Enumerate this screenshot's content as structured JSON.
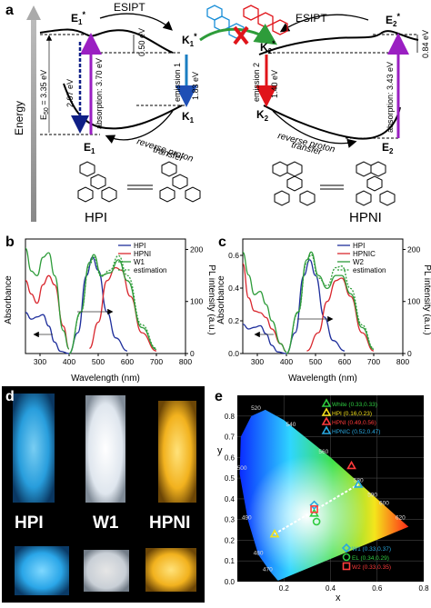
{
  "panel_a": {
    "letter": "a",
    "energy_axis": "Energy",
    "esipt_left": "ESIPT",
    "esipt_right": "ESIPT",
    "reverse_left": [
      "reverse proton",
      "transfer"
    ],
    "reverse_right": [
      "reverse proton",
      "transfer"
    ],
    "E1_star": "E",
    "E1_star_sub": "1",
    "E2_star": "E",
    "E2_star_sub": "2",
    "K1_star": "K",
    "K1_star_sub": "1",
    "K2_star": "K",
    "K2_star_sub": "2",
    "K1": "K",
    "K1_sub": "1",
    "K2": "K",
    "K2_sub": "2",
    "E1": "E",
    "E1_sub": "1",
    "E2": "E",
    "E2_sub": "2",
    "eg_label": "E",
    "eg_sub": "50",
    "eg_value": " = 3.35 eV",
    "v297": "2.97 eV",
    "v370": "absorption: 3.70 eV",
    "v050": "0.50 eV",
    "v183": "1.83 eV",
    "emission1": "emission 1",
    "emission2": "emission 2",
    "v140": "1.40 eV",
    "v343": "absorption: 3.43 eV",
    "v084": "0.84 eV",
    "mol_left": "HPI",
    "mol_right": "HPNI",
    "colors": {
      "violet": "#9a1fc2",
      "blue": "#1f4fb5",
      "darkblue": "#0f1f86",
      "red": "#e0141a",
      "green": "#2e9c3a",
      "cyan": "#1a7ec2"
    }
  },
  "panel_b": {
    "letter": "b",
    "ylabel": "Absorbance",
    "y2label": "PL intensity (a.u.)",
    "xlabel": "Wavelength (nm)",
    "legend": [
      "HPI",
      "HPNI",
      "W1",
      "estimation"
    ],
    "xticks": [
      "300",
      "400",
      "500",
      "600",
      "700",
      "800"
    ],
    "y2ticks": [
      "0",
      "100",
      "200"
    ]
  },
  "panel_c": {
    "letter": "c",
    "ylabel": "Absorbance",
    "y2label": "PL intensity (a.u.)",
    "xlabel": "Wavelength (nm)",
    "legend": [
      "HPI",
      "HPNIC",
      "W2",
      "estimation"
    ],
    "xticks": [
      "300",
      "400",
      "500",
      "600",
      "700",
      "800"
    ],
    "yticks": [
      "0.0",
      "0.2",
      "0.4",
      "0.6"
    ],
    "y2ticks": [
      "0",
      "100",
      "200"
    ]
  },
  "panel_d": {
    "letter": "d",
    "labels": [
      "HPI",
      "W1",
      "HPNI"
    ],
    "colors": {
      "hpi": "#38b8f0",
      "w1": "#e8edf3",
      "hpni": "#f2b21e"
    }
  },
  "panel_e": {
    "letter": "e",
    "ylabel": "y",
    "xlabel": "x",
    "xticks": [
      "0.2",
      "0.4",
      "0.6",
      "0.8"
    ],
    "yticks": [
      "0.0",
      "0.1",
      "0.2",
      "0.3",
      "0.4",
      "0.5",
      "0.6",
      "0.7",
      "0.8"
    ],
    "wavelength_marks": [
      "520",
      "540",
      "500",
      "560",
      "580",
      "590",
      "600",
      "620",
      "490",
      "480",
      "470"
    ],
    "legend_top": [
      {
        "text": "White (0.33,0.33)",
        "color": "#2ecc40"
      },
      {
        "text": "HPI (0.16,0.23)",
        "color": "#f5e21b"
      },
      {
        "text": "HPNI (0.49,0.56)",
        "color": "#ff3b3b"
      },
      {
        "text": "HPNIC (0.52,0.47)",
        "color": "#29a8e0"
      }
    ],
    "legend_bottom": [
      {
        "text": "W1 (0.33,0.37)",
        "color": "#29a8e0"
      },
      {
        "text": "EL (0.34,0.29)",
        "color": "#2ecc40"
      },
      {
        "text": "W2 (0.33,0.35)",
        "color": "#ff3b3b"
      }
    ]
  },
  "chart_data": [
    {
      "type": "line",
      "panel": "b",
      "xlabel": "Wavelength (nm)",
      "ylabel": "Absorbance",
      "y2label": "PL intensity (a.u.)",
      "xlim": [
        250,
        800
      ],
      "y2lim": [
        0,
        220
      ],
      "series": [
        {
          "name": "HPI",
          "kind": "absorbance",
          "x": [
            250,
            270,
            290,
            310,
            330,
            350,
            370,
            400
          ],
          "y": [
            0.18,
            0.15,
            0.16,
            0.17,
            0.12,
            0.05,
            0.01,
            0
          ]
        },
        {
          "name": "HPNI",
          "kind": "absorbance",
          "x": [
            250,
            270,
            290,
            310,
            330,
            350,
            380,
            400
          ],
          "y": [
            0.32,
            0.26,
            0.22,
            0.3,
            0.34,
            0.3,
            0.12,
            0.02
          ]
        },
        {
          "name": "W1",
          "kind": "absorbance",
          "x": [
            250,
            270,
            290,
            310,
            330,
            350,
            380,
            400
          ],
          "y": [
            0.46,
            0.36,
            0.34,
            0.42,
            0.44,
            0.34,
            0.1,
            0.02
          ]
        },
        {
          "name": "HPI",
          "kind": "PL",
          "x": [
            400,
            430,
            460,
            480,
            500,
            530,
            560,
            600
          ],
          "y": [
            0,
            40,
            150,
            185,
            160,
            80,
            30,
            5
          ]
        },
        {
          "name": "HPNI",
          "kind": "PL",
          "x": [
            470,
            500,
            530,
            560,
            580,
            610,
            650,
            700
          ],
          "y": [
            10,
            60,
            140,
            165,
            160,
            110,
            40,
            5
          ]
        },
        {
          "name": "W1",
          "kind": "PL",
          "x": [
            400,
            440,
            470,
            485,
            510,
            540,
            570,
            600,
            650,
            700
          ],
          "y": [
            0,
            80,
            175,
            190,
            150,
            155,
            180,
            140,
            50,
            8
          ]
        },
        {
          "name": "estimation",
          "kind": "PL",
          "x": [
            400,
            440,
            470,
            485,
            510,
            540,
            570,
            600,
            650,
            700
          ],
          "y": [
            0,
            78,
            170,
            185,
            148,
            160,
            188,
            150,
            55,
            10
          ]
        }
      ]
    },
    {
      "type": "line",
      "panel": "c",
      "xlabel": "Wavelength (nm)",
      "ylabel": "Absorbance",
      "y2label": "PL intensity (a.u.)",
      "xlim": [
        250,
        800
      ],
      "ylim": [
        0,
        0.7
      ],
      "y2lim": [
        0,
        220
      ],
      "series": [
        {
          "name": "HPI",
          "kind": "absorbance",
          "x": [
            250,
            270,
            290,
            310,
            330,
            350,
            370,
            400
          ],
          "y": [
            0.18,
            0.15,
            0.16,
            0.17,
            0.12,
            0.05,
            0.01,
            0
          ]
        },
        {
          "name": "HPNIC",
          "kind": "absorbance",
          "x": [
            250,
            270,
            290,
            310,
            330,
            350,
            380,
            400
          ],
          "y": [
            0.55,
            0.34,
            0.26,
            0.25,
            0.22,
            0.15,
            0.06,
            0.01
          ]
        },
        {
          "name": "W2",
          "kind": "absorbance",
          "x": [
            250,
            270,
            290,
            310,
            330,
            350,
            380,
            400
          ],
          "y": [
            0.62,
            0.48,
            0.36,
            0.38,
            0.3,
            0.2,
            0.06,
            0.01
          ]
        },
        {
          "name": "HPI",
          "kind": "PL",
          "x": [
            400,
            430,
            460,
            480,
            500,
            530,
            560,
            600
          ],
          "y": [
            0,
            40,
            150,
            180,
            150,
            70,
            25,
            5
          ]
        },
        {
          "name": "HPNIC",
          "kind": "PL",
          "x": [
            470,
            510,
            540,
            570,
            590,
            620,
            660,
            700
          ],
          "y": [
            5,
            40,
            100,
            140,
            145,
            110,
            40,
            5
          ]
        },
        {
          "name": "W2",
          "kind": "PL",
          "x": [
            400,
            440,
            470,
            485,
            510,
            540,
            570,
            590,
            620,
            660,
            700
          ],
          "y": [
            0,
            80,
            180,
            195,
            150,
            125,
            150,
            150,
            115,
            50,
            8
          ]
        },
        {
          "name": "estimation",
          "kind": "PL",
          "x": [
            400,
            440,
            470,
            485,
            510,
            540,
            570,
            590,
            620,
            660,
            700
          ],
          "y": [
            0,
            78,
            175,
            190,
            145,
            130,
            165,
            168,
            125,
            55,
            10
          ]
        }
      ]
    },
    {
      "type": "scatter",
      "panel": "e",
      "xlabel": "x",
      "ylabel": "y",
      "xlim": [
        0,
        0.8
      ],
      "ylim": [
        0,
        0.9
      ],
      "points": [
        {
          "name": "White",
          "x": 0.33,
          "y": 0.33
        },
        {
          "name": "HPI",
          "x": 0.16,
          "y": 0.23
        },
        {
          "name": "HPNI",
          "x": 0.49,
          "y": 0.56
        },
        {
          "name": "HPNIC",
          "x": 0.52,
          "y": 0.47
        },
        {
          "name": "W1",
          "x": 0.33,
          "y": 0.37
        },
        {
          "name": "EL",
          "x": 0.34,
          "y": 0.29
        },
        {
          "name": "W2",
          "x": 0.33,
          "y": 0.35
        }
      ]
    }
  ]
}
